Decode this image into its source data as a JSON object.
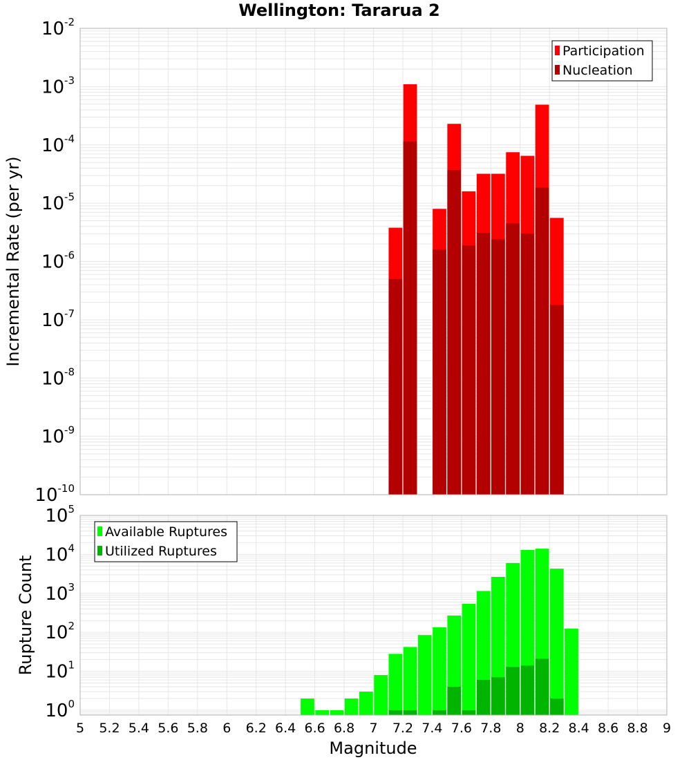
{
  "chart_data": {
    "title": "Wellington: Tararua 2",
    "xlabel": "Magnitude",
    "x_ticks": [
      "5",
      "5.2",
      "5.4",
      "5.6",
      "5.8",
      "6",
      "6.2",
      "6.4",
      "6.6",
      "6.8",
      "7",
      "7.2",
      "7.4",
      "7.6",
      "7.8",
      "8",
      "8.2",
      "8.4",
      "8.6",
      "8.8",
      "9"
    ],
    "xlim": [
      5,
      9
    ],
    "bin_width": 0.1,
    "colors": {
      "participation": "#ff0000",
      "nucleation": "#b30000",
      "available": "#00ff00",
      "utilized": "#00b400",
      "grid": "#e6e6e6",
      "frame": "#b0b0b0"
    },
    "panels": [
      {
        "type": "bar",
        "scale": "log",
        "ylabel": "Incremental Rate (per yr)",
        "ylim": [
          1e-10,
          0.01
        ],
        "y_ticks": [
          {
            "base": "10",
            "exp": "-10"
          },
          {
            "base": "10",
            "exp": "-9"
          },
          {
            "base": "10",
            "exp": "-8"
          },
          {
            "base": "10",
            "exp": "-7"
          },
          {
            "base": "10",
            "exp": "-6"
          },
          {
            "base": "10",
            "exp": "-5"
          },
          {
            "base": "10",
            "exp": "-4"
          },
          {
            "base": "10",
            "exp": "-3"
          },
          {
            "base": "10",
            "exp": "-2"
          }
        ],
        "legend_position": "top-right",
        "series": [
          {
            "name": "Participation",
            "color_key": "participation",
            "x": [
              7.15,
              7.25,
              7.45,
              7.55,
              7.65,
              7.75,
              7.85,
              7.95,
              8.05,
              8.15,
              8.25
            ],
            "values": [
              3.8e-06,
              0.0011,
              8e-06,
              0.00023,
              1.6e-05,
              3.2e-05,
              3.2e-05,
              7.5e-05,
              6.5e-05,
              0.00049,
              5.6e-06
            ]
          },
          {
            "name": "Nucleation",
            "color_key": "nucleation",
            "x": [
              7.15,
              7.25,
              7.45,
              7.55,
              7.65,
              7.75,
              7.85,
              7.95,
              8.05,
              8.15,
              8.25
            ],
            "values": [
              5e-07,
              0.000115,
              1.6e-06,
              3.7e-05,
              1.9e-06,
              3.1e-06,
              2.4e-06,
              4.5e-06,
              3e-06,
              1.85e-05,
              1.8e-07
            ]
          }
        ]
      },
      {
        "type": "bar",
        "scale": "log",
        "ylabel": "Rupture Count",
        "ylim": [
          0.75,
          100000
        ],
        "y_ticks": [
          {
            "base": "10",
            "exp": "0"
          },
          {
            "base": "10",
            "exp": "1"
          },
          {
            "base": "10",
            "exp": "2"
          },
          {
            "base": "10",
            "exp": "3"
          },
          {
            "base": "10",
            "exp": "4"
          },
          {
            "base": "10",
            "exp": "5"
          }
        ],
        "legend_position": "top-left",
        "series": [
          {
            "name": "Available Ruptures",
            "color_key": "available",
            "x": [
              6.55,
              6.65,
              6.75,
              6.85,
              6.95,
              7.05,
              7.15,
              7.25,
              7.35,
              7.45,
              7.55,
              7.65,
              7.75,
              7.85,
              7.95,
              8.05,
              8.15,
              8.25,
              8.35
            ],
            "values": [
              2,
              1,
              1,
              2,
              3,
              8,
              28,
              42,
              85,
              135,
              270,
              540,
              1150,
              2650,
              6000,
              13000,
              14000,
              4300,
              125
            ]
          },
          {
            "name": "Utilized Ruptures",
            "color_key": "utilized",
            "x": [
              7.15,
              7.25,
              7.45,
              7.55,
              7.65,
              7.75,
              7.85,
              7.95,
              8.05,
              8.15,
              8.25
            ],
            "values": [
              1,
              1,
              1,
              4,
              1,
              6,
              7,
              13,
              14,
              21,
              2
            ]
          }
        ]
      }
    ]
  }
}
